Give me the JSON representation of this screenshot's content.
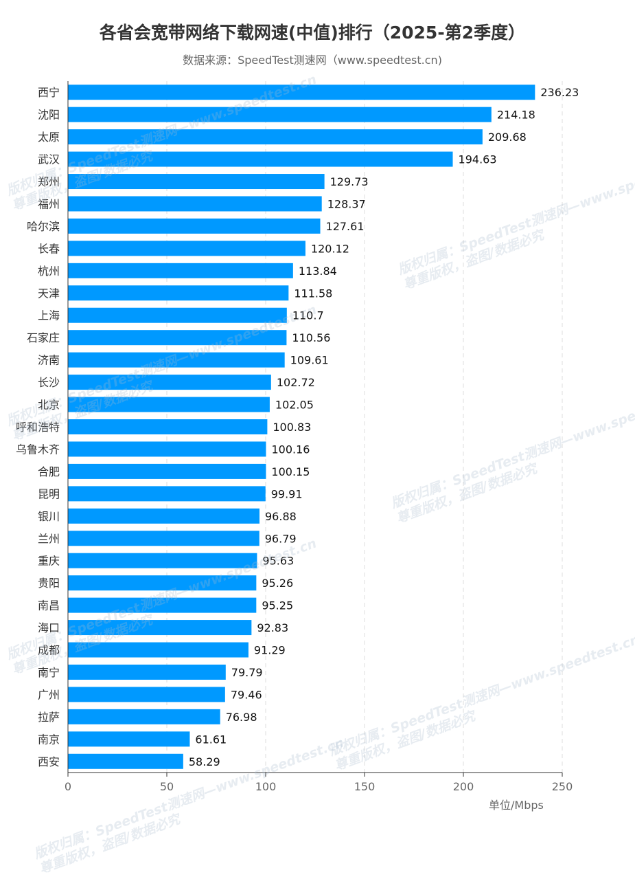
{
  "chart_data": {
    "type": "bar",
    "orientation": "horizontal",
    "title": "各省会宽带网络下载网速(中值)排行（2025-第2季度）",
    "subtitle": "数据来源：SpeedTest测速网（www.speedtest.cn)",
    "categories": [
      "西宁",
      "沈阳",
      "太原",
      "武汉",
      "郑州",
      "福州",
      "哈尔滨",
      "长春",
      "杭州",
      "天津",
      "上海",
      "石家庄",
      "济南",
      "长沙",
      "北京",
      "呼和浩特",
      "乌鲁木齐",
      "合肥",
      "昆明",
      "银川",
      "兰州",
      "重庆",
      "贵阳",
      "南昌",
      "海口",
      "成都",
      "南宁",
      "广州",
      "拉萨",
      "南京",
      "西安"
    ],
    "values": [
      236.23,
      214.18,
      209.68,
      194.63,
      129.73,
      128.37,
      127.61,
      120.12,
      113.84,
      111.58,
      110.7,
      110.56,
      109.61,
      102.72,
      102.05,
      100.83,
      100.16,
      100.15,
      99.91,
      96.88,
      96.79,
      95.63,
      95.26,
      95.25,
      92.83,
      91.29,
      79.79,
      79.46,
      76.98,
      61.61,
      58.29
    ],
    "value_labels": [
      "236.23",
      "214.18",
      "209.68",
      "194.63",
      "129.73",
      "128.37",
      "127.61",
      "120.12",
      "113.84",
      "111.58",
      "110.7",
      "110.56",
      "109.61",
      "102.72",
      "102.05",
      "100.83",
      "100.16",
      "100.15",
      "99.91",
      "96.88",
      "96.79",
      "95.63",
      "95.26",
      "95.25",
      "92.83",
      "91.29",
      "79.79",
      "79.46",
      "76.98",
      "61.61",
      "58.29"
    ],
    "xlim": [
      0,
      250
    ],
    "xticks": [
      "0",
      "50",
      "100",
      "150",
      "200",
      "250"
    ],
    "unit_label": "单位/Mbps",
    "grid": "vertical dashed",
    "bar_color": "#0099ff"
  },
  "watermark": {
    "line1": "版权归属：SpeedTest测速网—www.speedtest.cn",
    "line2": "尊重版权，盗图/数据必究"
  }
}
